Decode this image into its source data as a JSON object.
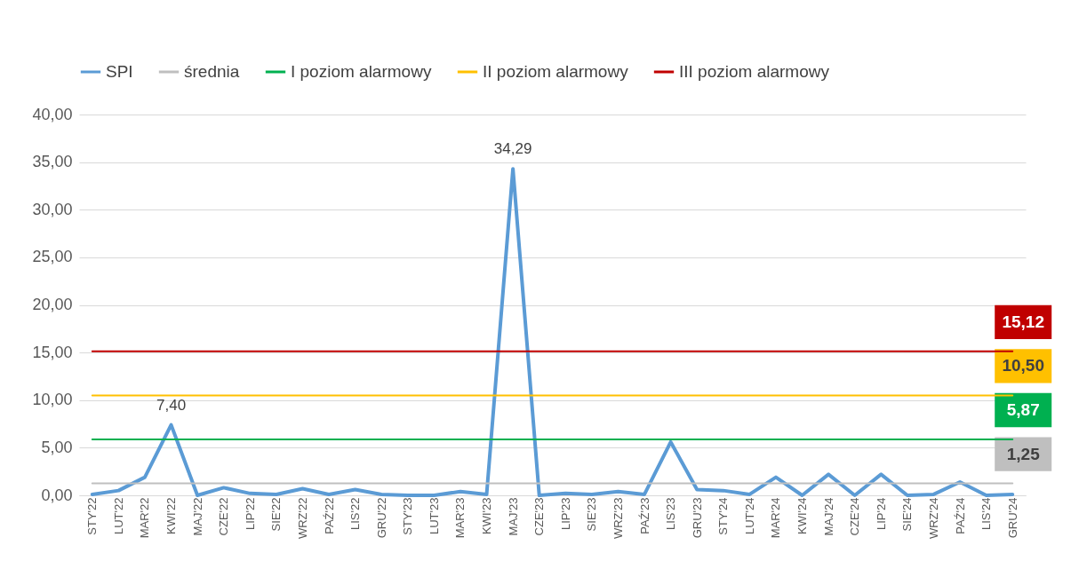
{
  "chart_data": {
    "type": "line",
    "categories": [
      "STY'22",
      "LUT'22",
      "MAR'22",
      "KWI'22",
      "MAJ'22",
      "CZE'22",
      "LIP'22",
      "SIE'22",
      "WRZ'22",
      "PAŹ'22",
      "LIS'22",
      "GRU'22",
      "STY'23",
      "LUT'23",
      "MAR'23",
      "KWI'23",
      "MAJ'23",
      "CZE'23",
      "LIP'23",
      "SIE'23",
      "WRZ'23",
      "PAŹ'23",
      "LIS'23",
      "GRU'23",
      "STY'24",
      "LUT'24",
      "MAR'24",
      "KWI'24",
      "MAJ'24",
      "CZE'24",
      "LIP'24",
      "SIE'24",
      "WRZ'24",
      "PAŹ'24",
      "LIS'24",
      "GRU'24"
    ],
    "series": [
      {
        "name": "SPI",
        "color": "#5b9bd5",
        "values": [
          0.1,
          0.5,
          1.9,
          7.4,
          0.0,
          0.8,
          0.2,
          0.1,
          0.7,
          0.1,
          0.6,
          0.1,
          0.0,
          0.0,
          0.4,
          0.1,
          34.29,
          0.0,
          0.2,
          0.1,
          0.4,
          0.1,
          5.6,
          0.6,
          0.5,
          0.1,
          1.9,
          0.0,
          2.2,
          0.0,
          2.2,
          0.0,
          0.1,
          1.4,
          0.0,
          0.1
        ],
        "value_labels": [
          null,
          null,
          null,
          "7,40",
          null,
          null,
          null,
          null,
          null,
          null,
          null,
          null,
          null,
          null,
          null,
          null,
          "34,29",
          null,
          null,
          null,
          null,
          null,
          null,
          null,
          null,
          null,
          null,
          null,
          null,
          null,
          null,
          null,
          null,
          null,
          null,
          null
        ]
      },
      {
        "name": "średnia",
        "color": "#bfbfbf",
        "values": [
          1.25,
          1.25,
          1.25,
          1.25,
          1.25,
          1.25,
          1.25,
          1.25,
          1.25,
          1.25,
          1.25,
          1.25,
          1.25,
          1.25,
          1.25,
          1.25,
          1.25,
          1.25,
          1.25,
          1.25,
          1.25,
          1.25,
          1.25,
          1.25,
          1.25,
          1.25,
          1.25,
          1.25,
          1.25,
          1.25,
          1.25,
          1.25,
          1.25,
          1.25,
          1.25,
          1.25
        ],
        "value_labels": [
          null,
          null,
          null,
          null,
          null,
          null,
          null,
          null,
          null,
          null,
          null,
          null,
          null,
          null,
          null,
          null,
          null,
          null,
          null,
          null,
          null,
          null,
          null,
          null,
          null,
          null,
          null,
          null,
          null,
          null,
          null,
          null,
          null,
          null,
          null,
          "1,25"
        ]
      },
      {
        "name": "I poziom alarmowy",
        "color": "#00b050",
        "values": [
          5.87,
          5.87,
          5.87,
          5.87,
          5.87,
          5.87,
          5.87,
          5.87,
          5.87,
          5.87,
          5.87,
          5.87,
          5.87,
          5.87,
          5.87,
          5.87,
          5.87,
          5.87,
          5.87,
          5.87,
          5.87,
          5.87,
          5.87,
          5.87,
          5.87,
          5.87,
          5.87,
          5.87,
          5.87,
          5.87,
          5.87,
          5.87,
          5.87,
          5.87,
          5.87,
          5.87
        ],
        "value_labels": [
          null,
          null,
          null,
          null,
          null,
          null,
          null,
          null,
          null,
          null,
          null,
          null,
          null,
          null,
          null,
          null,
          null,
          null,
          null,
          null,
          null,
          null,
          null,
          null,
          null,
          null,
          null,
          null,
          null,
          null,
          null,
          null,
          null,
          null,
          null,
          "5,87"
        ]
      },
      {
        "name": "II poziom alarmowy",
        "color": "#ffc000",
        "values": [
          10.5,
          10.5,
          10.5,
          10.5,
          10.5,
          10.5,
          10.5,
          10.5,
          10.5,
          10.5,
          10.5,
          10.5,
          10.5,
          10.5,
          10.5,
          10.5,
          10.5,
          10.5,
          10.5,
          10.5,
          10.5,
          10.5,
          10.5,
          10.5,
          10.5,
          10.5,
          10.5,
          10.5,
          10.5,
          10.5,
          10.5,
          10.5,
          10.5,
          10.5,
          10.5,
          10.5
        ],
        "value_labels": [
          null,
          null,
          null,
          null,
          null,
          null,
          null,
          null,
          null,
          null,
          null,
          null,
          null,
          null,
          null,
          null,
          null,
          null,
          null,
          null,
          null,
          null,
          null,
          null,
          null,
          null,
          null,
          null,
          null,
          null,
          null,
          null,
          null,
          null,
          null,
          "10,50"
        ]
      },
      {
        "name": "III poziom alarmowy",
        "color": "#c00000",
        "values": [
          15.12,
          15.12,
          15.12,
          15.12,
          15.12,
          15.12,
          15.12,
          15.12,
          15.12,
          15.12,
          15.12,
          15.12,
          15.12,
          15.12,
          15.12,
          15.12,
          15.12,
          15.12,
          15.12,
          15.12,
          15.12,
          15.12,
          15.12,
          15.12,
          15.12,
          15.12,
          15.12,
          15.12,
          15.12,
          15.12,
          15.12,
          15.12,
          15.12,
          15.12,
          15.12,
          15.12
        ],
        "value_labels": [
          null,
          null,
          null,
          null,
          null,
          null,
          null,
          null,
          null,
          null,
          null,
          null,
          null,
          null,
          null,
          null,
          null,
          null,
          null,
          null,
          null,
          null,
          null,
          null,
          null,
          null,
          null,
          null,
          null,
          null,
          null,
          null,
          null,
          null,
          null,
          "15,12"
        ]
      }
    ],
    "ylim": [
      0,
      40
    ],
    "yticks": [
      {
        "value": 0,
        "label": "0,00"
      },
      {
        "value": 5,
        "label": "5,00"
      },
      {
        "value": 10,
        "label": "10,00"
      },
      {
        "value": 15,
        "label": "15,00"
      },
      {
        "value": 20,
        "label": "20,00"
      },
      {
        "value": 25,
        "label": "25,00"
      },
      {
        "value": 30,
        "label": "30,00"
      },
      {
        "value": 35,
        "label": "35,00"
      },
      {
        "value": 40,
        "label": "40,00"
      }
    ],
    "grid": "y",
    "legend": "top"
  }
}
